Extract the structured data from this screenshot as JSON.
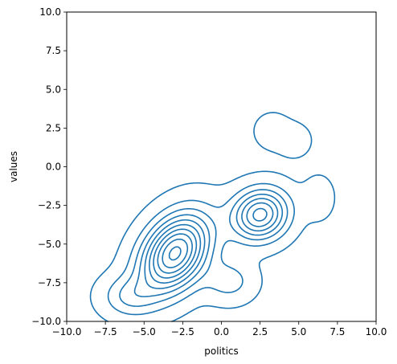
{
  "chart_data": {
    "type": "contour",
    "title": "",
    "xlabel": "politics",
    "ylabel": "values",
    "xlim": [
      -10,
      10
    ],
    "ylim": [
      -10,
      10
    ],
    "xticks": [
      -10,
      -7.5,
      -5,
      -2.5,
      0,
      2.5,
      5,
      7.5,
      10
    ],
    "yticks": [
      -10,
      -7.5,
      -5,
      -2.5,
      0,
      2.5,
      5,
      7.5,
      10
    ],
    "xtick_labels": [
      "−10.0",
      "−7.5",
      "−5.0",
      "−2.5",
      "0.0",
      "2.5",
      "5.0",
      "7.5",
      "10.0"
    ],
    "ytick_labels": [
      "−10.0",
      "−7.5",
      "−5.0",
      "−2.5",
      "0.0",
      "2.5",
      "5.0",
      "7.5",
      "10.0"
    ],
    "grid": false,
    "color": "#1f77b4",
    "levels": 10,
    "components": [
      {
        "mx": -3.0,
        "my": -5.6,
        "sx": 1.5,
        "sy": 1.7,
        "rho": 0.35,
        "w": 1.0
      },
      {
        "mx": 2.5,
        "my": -3.1,
        "sx": 1.2,
        "sy": 1.1,
        "rho": 0.1,
        "w": 0.7
      },
      {
        "mx": -6.0,
        "my": -8.4,
        "sx": 1.2,
        "sy": 0.9,
        "rho": 0.0,
        "w": 0.22
      },
      {
        "mx": 0.5,
        "my": -7.4,
        "sx": 1.1,
        "sy": 0.9,
        "rho": 0.0,
        "w": 0.18
      },
      {
        "mx": 3.3,
        "my": 2.3,
        "sx": 0.7,
        "sy": 0.7,
        "rho": 0.0,
        "w": 0.12
      },
      {
        "mx": 4.7,
        "my": 1.7,
        "sx": 0.7,
        "sy": 0.7,
        "rho": 0.0,
        "w": 0.1
      },
      {
        "mx": 6.3,
        "my": -2.0,
        "sx": 0.7,
        "sy": 1.0,
        "rho": 0.0,
        "w": 0.08
      }
    ]
  }
}
